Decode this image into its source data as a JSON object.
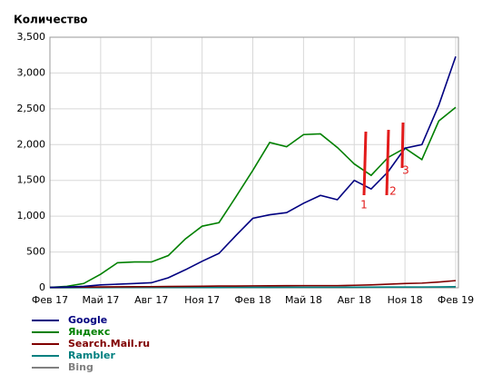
{
  "chart_data": {
    "type": "line",
    "title": "Количество",
    "categories": [
      "Фев 17",
      null,
      null,
      "Май 17",
      null,
      null,
      "Авг 17",
      null,
      null,
      "Ноя 17",
      null,
      null,
      "Фев 18",
      null,
      null,
      "Май 18",
      null,
      null,
      "Авг 18",
      null,
      null,
      "Ноя 18",
      null,
      null,
      "Фев 19"
    ],
    "ylim": [
      0,
      3500
    ],
    "yticks": [
      0,
      {
        "value": 500,
        "label": "500"
      },
      {
        "value": 1000,
        "label": "1,000"
      },
      {
        "value": 1500,
        "label": "1,500"
      },
      {
        "value": 2000,
        "label": "2,000"
      },
      {
        "value": 2500,
        "label": "2,500"
      },
      {
        "value": 3000,
        "label": "3,000"
      },
      {
        "value": 3500,
        "label": "3,500"
      }
    ],
    "grid": true,
    "series": [
      {
        "name": "Google",
        "color": "#000080",
        "values": [
          5,
          10,
          20,
          40,
          50,
          60,
          70,
          140,
          250,
          370,
          480,
          730,
          970,
          1020,
          1050,
          1180,
          1290,
          1230,
          1500,
          1380,
          1620,
          1950,
          2000,
          2550,
          3230
        ]
      },
      {
        "name": "Яндекс",
        "color": "#008000",
        "values": [
          5,
          20,
          60,
          190,
          350,
          360,
          360,
          450,
          680,
          860,
          910,
          1270,
          1640,
          2030,
          1970,
          2140,
          2150,
          1960,
          1730,
          1570,
          1820,
          1950,
          1790,
          2330,
          2520
        ]
      },
      {
        "name": "Search.Mail.ru",
        "color": "#800000",
        "values": [
          5,
          8,
          10,
          12,
          14,
          15,
          16,
          18,
          20,
          22,
          24,
          25,
          27,
          28,
          29,
          30,
          30,
          30,
          35,
          40,
          50,
          60,
          65,
          80,
          100
        ]
      },
      {
        "name": "Rambler",
        "color": "#008080",
        "values": [
          3,
          3,
          4,
          4,
          5,
          5,
          5,
          5,
          6,
          6,
          6,
          7,
          7,
          7,
          8,
          8,
          8,
          8,
          9,
          9,
          10,
          10,
          11,
          12,
          15
        ]
      },
      {
        "name": "Bing",
        "color": "#808080",
        "values": [
          1,
          1,
          1,
          1,
          2,
          2,
          2,
          2,
          2,
          2,
          2,
          3,
          3,
          3,
          3,
          3,
          3,
          3,
          3,
          4,
          4,
          4,
          4,
          5,
          5
        ]
      }
    ],
    "annotations": [
      "1",
      "2",
      "3"
    ]
  }
}
